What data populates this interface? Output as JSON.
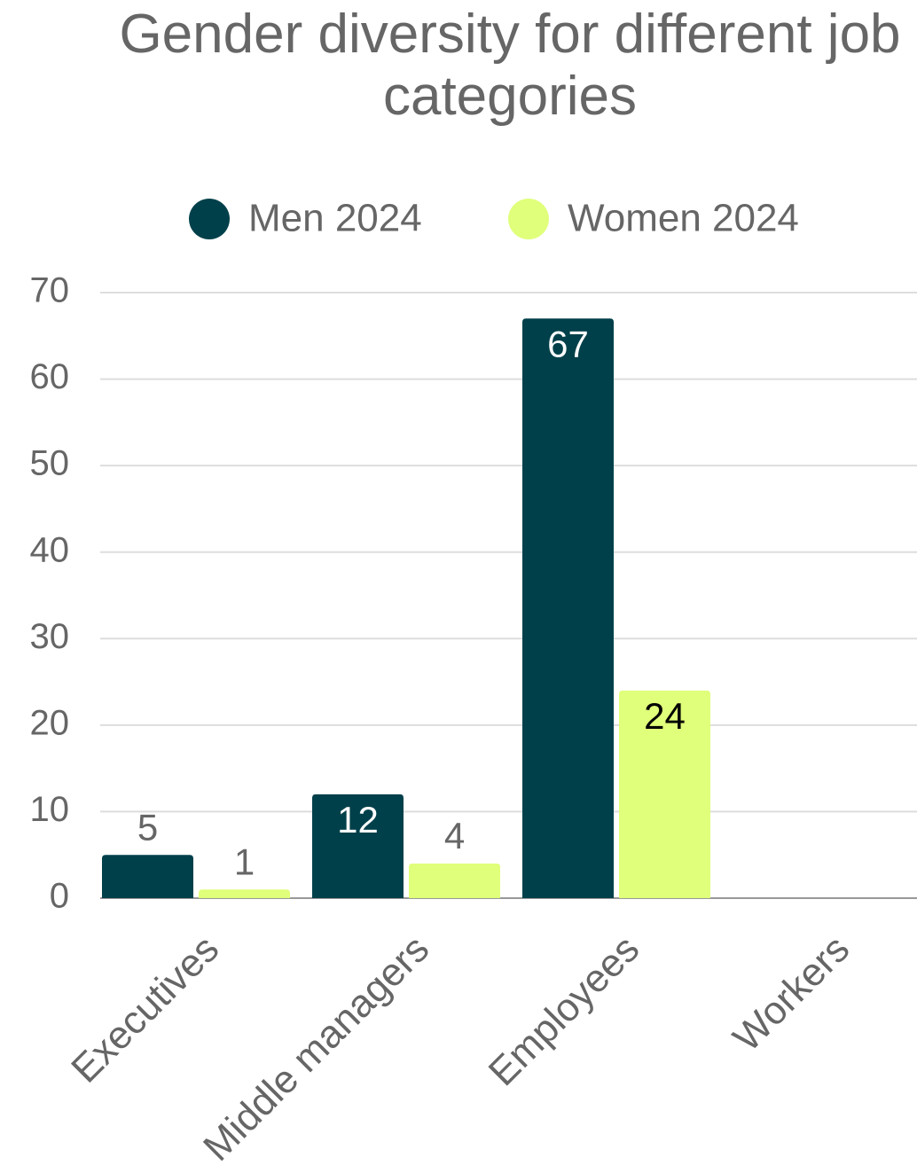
{
  "chart_data": {
    "type": "bar",
    "title": "Gender diversity for different job categories",
    "categories": [
      "Executives",
      "Middle managers",
      "Employees",
      "Workers"
    ],
    "series": [
      {
        "name": "Men 2024",
        "color": "#00404a",
        "values": [
          5,
          12,
          67,
          null
        ]
      },
      {
        "name": "Women 2024",
        "color": "#e0ff7a",
        "values": [
          1,
          4,
          24,
          null
        ]
      }
    ],
    "ylim": [
      0,
      70
    ],
    "yticks": [
      0,
      10,
      20,
      30,
      40,
      50,
      60,
      70
    ],
    "grid": true,
    "legend": "top"
  }
}
